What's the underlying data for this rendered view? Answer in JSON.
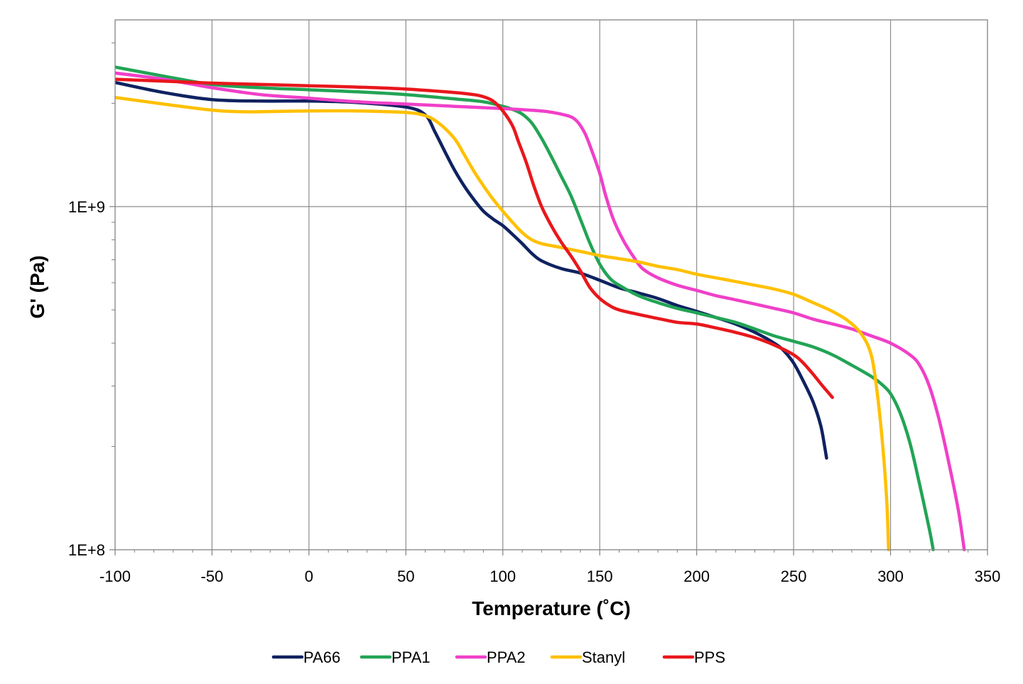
{
  "chart_data": {
    "type": "line",
    "title": "",
    "xlabel": "Temperature (˚C)",
    "ylabel": "G' (Pa)",
    "xlim": [
      -100,
      350
    ],
    "ylim": [
      100000000,
      3500000000
    ],
    "y_scale": "log",
    "grid": true,
    "legend_position": "bottom",
    "x_ticks": [
      "-100",
      "-50",
      "0",
      "50",
      "100",
      "150",
      "200",
      "250",
      "300",
      "350"
    ],
    "x_tick_values": [
      -100,
      -50,
      0,
      50,
      100,
      150,
      200,
      250,
      300,
      350
    ],
    "y_ticks": [
      "1E+8",
      "1E+9"
    ],
    "y_tick_values": [
      100000000,
      1000000000
    ],
    "series": [
      {
        "name": "PA66",
        "color": "#0f2260",
        "points": [
          [
            -100,
            2300000000
          ],
          [
            -75,
            2150000000
          ],
          [
            -50,
            2050000000
          ],
          [
            -25,
            2030000000
          ],
          [
            0,
            2030000000
          ],
          [
            25,
            2010000000
          ],
          [
            50,
            1950000000
          ],
          [
            60,
            1850000000
          ],
          [
            65,
            1650000000
          ],
          [
            70,
            1450000000
          ],
          [
            75,
            1280000000
          ],
          [
            80,
            1150000000
          ],
          [
            85,
            1050000000
          ],
          [
            90,
            970000000
          ],
          [
            95,
            920000000
          ],
          [
            100,
            880000000
          ],
          [
            105,
            830000000
          ],
          [
            110,
            780000000
          ],
          [
            115,
            730000000
          ],
          [
            120,
            695000000
          ],
          [
            130,
            660000000
          ],
          [
            140,
            640000000
          ],
          [
            150,
            610000000
          ],
          [
            160,
            580000000
          ],
          [
            170,
            560000000
          ],
          [
            180,
            540000000
          ],
          [
            190,
            515000000
          ],
          [
            200,
            495000000
          ],
          [
            210,
            475000000
          ],
          [
            220,
            455000000
          ],
          [
            230,
            430000000
          ],
          [
            240,
            400000000
          ],
          [
            245,
            380000000
          ],
          [
            250,
            350000000
          ],
          [
            255,
            310000000
          ],
          [
            260,
            270000000
          ],
          [
            264,
            230000000
          ],
          [
            266,
            200000000
          ],
          [
            267,
            185000000
          ]
        ]
      },
      {
        "name": "PPA1",
        "color": "#22a455",
        "points": [
          [
            -100,
            2550000000
          ],
          [
            -75,
            2400000000
          ],
          [
            -50,
            2270000000
          ],
          [
            -25,
            2220000000
          ],
          [
            0,
            2190000000
          ],
          [
            25,
            2160000000
          ],
          [
            50,
            2120000000
          ],
          [
            75,
            2060000000
          ],
          [
            90,
            2020000000
          ],
          [
            100,
            1960000000
          ],
          [
            105,
            1920000000
          ],
          [
            110,
            1860000000
          ],
          [
            115,
            1750000000
          ],
          [
            120,
            1580000000
          ],
          [
            125,
            1400000000
          ],
          [
            130,
            1230000000
          ],
          [
            135,
            1080000000
          ],
          [
            140,
            920000000
          ],
          [
            145,
            780000000
          ],
          [
            150,
            680000000
          ],
          [
            155,
            620000000
          ],
          [
            160,
            590000000
          ],
          [
            170,
            550000000
          ],
          [
            180,
            525000000
          ],
          [
            190,
            505000000
          ],
          [
            200,
            490000000
          ],
          [
            210,
            475000000
          ],
          [
            220,
            460000000
          ],
          [
            230,
            440000000
          ],
          [
            240,
            420000000
          ],
          [
            250,
            405000000
          ],
          [
            260,
            390000000
          ],
          [
            270,
            370000000
          ],
          [
            280,
            345000000
          ],
          [
            290,
            320000000
          ],
          [
            295,
            305000000
          ],
          [
            300,
            285000000
          ],
          [
            305,
            250000000
          ],
          [
            310,
            205000000
          ],
          [
            315,
            155000000
          ],
          [
            320,
            115000000
          ],
          [
            322,
            100000000
          ]
        ]
      },
      {
        "name": "PPA2",
        "color": "#f040c8",
        "points": [
          [
            -100,
            2450000000
          ],
          [
            -75,
            2350000000
          ],
          [
            -50,
            2220000000
          ],
          [
            -25,
            2120000000
          ],
          [
            0,
            2070000000
          ],
          [
            25,
            2020000000
          ],
          [
            50,
            1990000000
          ],
          [
            75,
            1960000000
          ],
          [
            100,
            1930000000
          ],
          [
            120,
            1900000000
          ],
          [
            130,
            1860000000
          ],
          [
            137,
            1800000000
          ],
          [
            142,
            1650000000
          ],
          [
            146,
            1450000000
          ],
          [
            150,
            1250000000
          ],
          [
            153,
            1080000000
          ],
          [
            157,
            920000000
          ],
          [
            162,
            800000000
          ],
          [
            167,
            720000000
          ],
          [
            172,
            660000000
          ],
          [
            180,
            620000000
          ],
          [
            190,
            590000000
          ],
          [
            200,
            570000000
          ],
          [
            210,
            550000000
          ],
          [
            220,
            535000000
          ],
          [
            230,
            520000000
          ],
          [
            240,
            505000000
          ],
          [
            250,
            490000000
          ],
          [
            260,
            470000000
          ],
          [
            270,
            455000000
          ],
          [
            280,
            440000000
          ],
          [
            290,
            420000000
          ],
          [
            300,
            400000000
          ],
          [
            310,
            370000000
          ],
          [
            315,
            345000000
          ],
          [
            320,
            300000000
          ],
          [
            325,
            240000000
          ],
          [
            330,
            180000000
          ],
          [
            335,
            130000000
          ],
          [
            338,
            100000000
          ]
        ]
      },
      {
        "name": "Stanyl",
        "color": "#ffc000",
        "points": [
          [
            -100,
            2080000000
          ],
          [
            -75,
            1990000000
          ],
          [
            -50,
            1910000000
          ],
          [
            -35,
            1890000000
          ],
          [
            -25,
            1890000000
          ],
          [
            0,
            1900000000
          ],
          [
            25,
            1900000000
          ],
          [
            50,
            1880000000
          ],
          [
            60,
            1840000000
          ],
          [
            67,
            1750000000
          ],
          [
            75,
            1580000000
          ],
          [
            80,
            1420000000
          ],
          [
            85,
            1270000000
          ],
          [
            90,
            1150000000
          ],
          [
            95,
            1050000000
          ],
          [
            100,
            970000000
          ],
          [
            105,
            900000000
          ],
          [
            110,
            840000000
          ],
          [
            115,
            800000000
          ],
          [
            120,
            780000000
          ],
          [
            130,
            760000000
          ],
          [
            140,
            740000000
          ],
          [
            150,
            720000000
          ],
          [
            160,
            705000000
          ],
          [
            170,
            690000000
          ],
          [
            180,
            670000000
          ],
          [
            190,
            655000000
          ],
          [
            200,
            635000000
          ],
          [
            210,
            620000000
          ],
          [
            220,
            605000000
          ],
          [
            230,
            590000000
          ],
          [
            240,
            575000000
          ],
          [
            250,
            555000000
          ],
          [
            260,
            525000000
          ],
          [
            270,
            495000000
          ],
          [
            278,
            465000000
          ],
          [
            285,
            425000000
          ],
          [
            290,
            370000000
          ],
          [
            293,
            290000000
          ],
          [
            296,
            200000000
          ],
          [
            298,
            140000000
          ],
          [
            299,
            100000000
          ]
        ]
      },
      {
        "name": "PPS",
        "color": "#e8171c",
        "points": [
          [
            -100,
            2350000000
          ],
          [
            -75,
            2320000000
          ],
          [
            -50,
            2290000000
          ],
          [
            -25,
            2270000000
          ],
          [
            0,
            2250000000
          ],
          [
            25,
            2230000000
          ],
          [
            50,
            2200000000
          ],
          [
            75,
            2150000000
          ],
          [
            85,
            2120000000
          ],
          [
            90,
            2090000000
          ],
          [
            95,
            2030000000
          ],
          [
            100,
            1900000000
          ],
          [
            105,
            1720000000
          ],
          [
            108,
            1550000000
          ],
          [
            112,
            1350000000
          ],
          [
            116,
            1150000000
          ],
          [
            120,
            1000000000
          ],
          [
            125,
            880000000
          ],
          [
            130,
            790000000
          ],
          [
            135,
            720000000
          ],
          [
            140,
            650000000
          ],
          [
            145,
            580000000
          ],
          [
            150,
            540000000
          ],
          [
            155,
            515000000
          ],
          [
            160,
            500000000
          ],
          [
            170,
            485000000
          ],
          [
            180,
            472000000
          ],
          [
            190,
            460000000
          ],
          [
            200,
            455000000
          ],
          [
            210,
            443000000
          ],
          [
            220,
            430000000
          ],
          [
            230,
            415000000
          ],
          [
            240,
            395000000
          ],
          [
            250,
            370000000
          ],
          [
            255,
            350000000
          ],
          [
            260,
            325000000
          ],
          [
            265,
            300000000
          ],
          [
            270,
            278000000
          ]
        ]
      }
    ]
  }
}
